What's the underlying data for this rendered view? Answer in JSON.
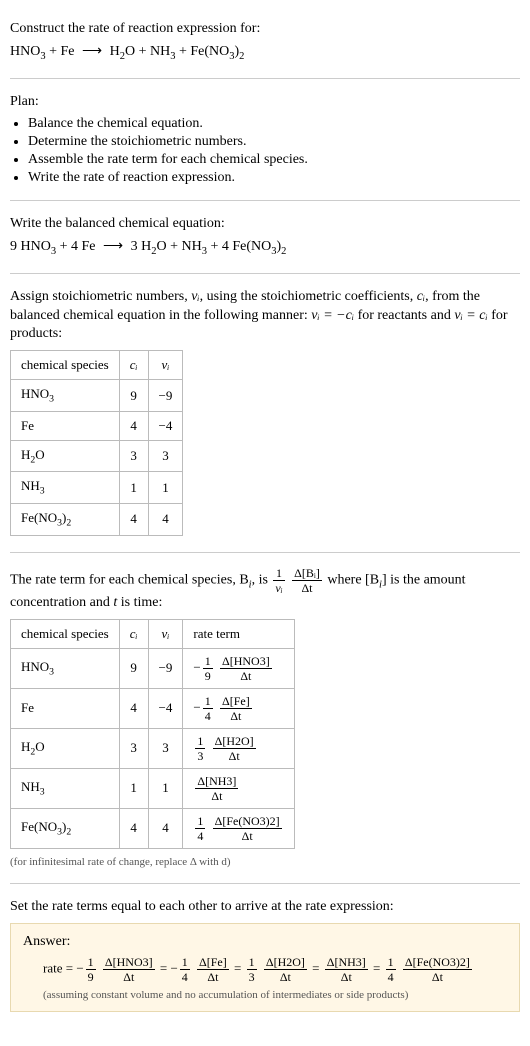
{
  "intro": {
    "title": "Construct the rate of reaction expression for:",
    "reaction_unbalanced": {
      "lhs": [
        {
          "coef": "",
          "formula_parts": [
            "HNO",
            {
              "sub": "3"
            }
          ]
        },
        {
          "coef": "",
          "formula_parts": [
            "Fe"
          ]
        }
      ],
      "rhs": [
        {
          "coef": "",
          "formula_parts": [
            "H",
            {
              "sub": "2"
            },
            "O"
          ]
        },
        {
          "coef": "",
          "formula_parts": [
            "NH",
            {
              "sub": "3"
            }
          ]
        },
        {
          "coef": "",
          "formula_parts": [
            "Fe(NO",
            {
              "sub": "3"
            },
            ")",
            {
              "sub": "2"
            }
          ]
        }
      ]
    }
  },
  "plan": {
    "heading": "Plan:",
    "items": [
      "Balance the chemical equation.",
      "Determine the stoichiometric numbers.",
      "Assemble the rate term for each chemical species.",
      "Write the rate of reaction expression."
    ]
  },
  "balanced": {
    "heading": "Write the balanced chemical equation:",
    "reaction": {
      "lhs": [
        {
          "coef": "9",
          "formula_parts": [
            "HNO",
            {
              "sub": "3"
            }
          ]
        },
        {
          "coef": "4",
          "formula_parts": [
            "Fe"
          ]
        }
      ],
      "rhs": [
        {
          "coef": "3",
          "formula_parts": [
            "H",
            {
              "sub": "2"
            },
            "O"
          ]
        },
        {
          "coef": "",
          "formula_parts": [
            "NH",
            {
              "sub": "3"
            }
          ]
        },
        {
          "coef": "4",
          "formula_parts": [
            "Fe(NO",
            {
              "sub": "3"
            },
            ")",
            {
              "sub": "2"
            }
          ]
        }
      ]
    }
  },
  "stoich_text": {
    "line1a": "Assign stoichiometric numbers, ",
    "line1b": ", using the stoichiometric coefficients, ",
    "line1c": ", from the balanced chemical equation in the following manner: ",
    "line1d": " for reactants and ",
    "line1e": " for products:",
    "nu": "ν",
    "nu_i": "νᵢ",
    "c_i": "cᵢ",
    "rel_reactants_lhs": "νᵢ",
    "rel_reactants_rhs": "−cᵢ",
    "rel_products_lhs": "νᵢ",
    "rel_products_rhs": "cᵢ"
  },
  "table1": {
    "headers": [
      "chemical species",
      "cᵢ",
      "νᵢ"
    ],
    "rows": [
      {
        "species": [
          "HNO",
          {
            "sub": "3"
          }
        ],
        "c": "9",
        "nu": "−9"
      },
      {
        "species": [
          "Fe"
        ],
        "c": "4",
        "nu": "−4"
      },
      {
        "species": [
          "H",
          {
            "sub": "2"
          },
          "O"
        ],
        "c": "3",
        "nu": "3"
      },
      {
        "species": [
          "NH",
          {
            "sub": "3"
          }
        ],
        "c": "1",
        "nu": "1"
      },
      {
        "species": [
          "Fe(NO",
          {
            "sub": "3"
          },
          ")",
          {
            "sub": "2"
          }
        ],
        "c": "4",
        "nu": "4"
      }
    ]
  },
  "rate_term_text": {
    "a": "The rate term for each chemical species, B",
    "b": ", is ",
    "c": " where [B",
    "d": "] is the amount concentration and ",
    "e": " is time:",
    "t": "t",
    "i": "i",
    "frac1_num": "1",
    "frac2_num": "Δ[Bᵢ]",
    "frac2_den": "Δt",
    "frac1_den": "νᵢ"
  },
  "table2": {
    "headers": [
      "chemical species",
      "cᵢ",
      "νᵢ",
      "rate term"
    ],
    "rows": [
      {
        "species": [
          "HNO",
          {
            "sub": "3"
          }
        ],
        "c": "9",
        "nu": "−9",
        "rate": {
          "prefix": "−",
          "coef_num": "1",
          "coef_den": "9",
          "d_num": "Δ[HNO3]",
          "d_den": "Δt"
        }
      },
      {
        "species": [
          "Fe"
        ],
        "c": "4",
        "nu": "−4",
        "rate": {
          "prefix": "−",
          "coef_num": "1",
          "coef_den": "4",
          "d_num": "Δ[Fe]",
          "d_den": "Δt"
        }
      },
      {
        "species": [
          "H",
          {
            "sub": "2"
          },
          "O"
        ],
        "c": "3",
        "nu": "3",
        "rate": {
          "prefix": "",
          "coef_num": "1",
          "coef_den": "3",
          "d_num": "Δ[H2O]",
          "d_den": "Δt"
        }
      },
      {
        "species": [
          "NH",
          {
            "sub": "3"
          }
        ],
        "c": "1",
        "nu": "1",
        "rate": {
          "prefix": "",
          "coef_num": "",
          "coef_den": "",
          "d_num": "Δ[NH3]",
          "d_den": "Δt"
        }
      },
      {
        "species": [
          "Fe(NO",
          {
            "sub": "3"
          },
          ")",
          {
            "sub": "2"
          }
        ],
        "c": "4",
        "nu": "4",
        "rate": {
          "prefix": "",
          "coef_num": "1",
          "coef_den": "4",
          "d_num": "Δ[Fe(NO3)2]",
          "d_den": "Δt"
        }
      }
    ]
  },
  "inf_note": "(for infinitesimal rate of change, replace Δ with d)",
  "set_equal": "Set the rate terms equal to each other to arrive at the rate expression:",
  "answer": {
    "label": "Answer:",
    "rate_label": "rate",
    "terms": [
      {
        "prefix": "−",
        "cn": "1",
        "cd": "9",
        "dn": "Δ[HNO3]",
        "dd": "Δt"
      },
      {
        "prefix": "−",
        "cn": "1",
        "cd": "4",
        "dn": "Δ[Fe]",
        "dd": "Δt"
      },
      {
        "prefix": "",
        "cn": "1",
        "cd": "3",
        "dn": "Δ[H2O]",
        "dd": "Δt"
      },
      {
        "prefix": "",
        "cn": "",
        "cd": "",
        "dn": "Δ[NH3]",
        "dd": "Δt"
      },
      {
        "prefix": "",
        "cn": "1",
        "cd": "4",
        "dn": "Δ[Fe(NO3)2]",
        "dd": "Δt"
      }
    ],
    "note": "(assuming constant volume and no accumulation of intermediates or side products)"
  },
  "colors": {
    "answer_bg": "#fff7e6",
    "answer_border": "#e8d9b0",
    "hr": "#cccccc",
    "table_border": "#bbbbbb"
  }
}
